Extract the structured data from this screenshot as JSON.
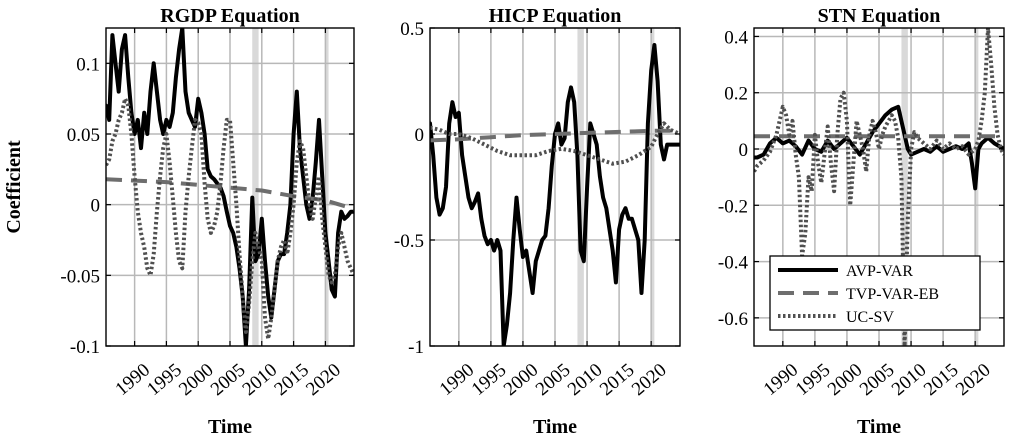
{
  "figure": {
    "ylabel": "Coefficient"
  },
  "legend_entries": [
    {
      "name": "AVP-VAR",
      "color": "#000000",
      "style": "solid"
    },
    {
      "name": "TVP-VAR-EB",
      "color": "#6e6e6e",
      "style": "dashed"
    },
    {
      "name": "UC-SV",
      "color": "#505050",
      "style": "dotted"
    }
  ],
  "chart_data": [
    {
      "type": "line",
      "title": "RGDP Equation",
      "xlabel": "Time",
      "ylabel": "Coefficient",
      "xlim": [
        1985.5,
        2024.5
      ],
      "ylim": [
        -0.1,
        0.125
      ],
      "xticks": [
        1990,
        1995,
        2000,
        2005,
        2010,
        2015,
        2020
      ],
      "yticks": [
        -0.1,
        -0.05,
        0,
        0.05,
        0.1
      ],
      "ytick_labels": [
        "-0.1",
        "-0.05",
        "0",
        "0.05",
        "0.1"
      ],
      "grid": true,
      "shaded_periods": [
        [
          2008.5,
          2009.5
        ],
        [
          2020.0,
          2020.5
        ]
      ],
      "series": [
        {
          "name": "AVP-VAR",
          "color": "#000000",
          "style": "solid",
          "x": [
            1985.5,
            1986,
            1986.5,
            1987,
            1987.5,
            1988,
            1988.5,
            1989,
            1989.5,
            1990,
            1990.5,
            1991,
            1991.5,
            1992,
            1992.5,
            1993,
            1993.5,
            1994,
            1994.5,
            1995,
            1995.5,
            1996,
            1996.5,
            1997,
            1997.5,
            1998,
            1998.5,
            1999,
            1999.5,
            2000,
            2000.5,
            2001,
            2001.5,
            2002,
            2002.5,
            2003,
            2003.5,
            2004,
            2004.5,
            2005,
            2005.5,
            2006,
            2006.5,
            2007,
            2007.5,
            2008,
            2008.5,
            2009,
            2009.5,
            2010,
            2010.5,
            2011,
            2011.5,
            2012,
            2012.5,
            2013,
            2013.5,
            2014,
            2014.5,
            2015,
            2015.5,
            2016,
            2016.5,
            2017,
            2017.5,
            2018,
            2018.5,
            2019,
            2019.5,
            2020,
            2020.5,
            2021,
            2021.5,
            2022,
            2022.5,
            2023,
            2023.5,
            2024,
            2024.5
          ],
          "y": [
            0.07,
            0.06,
            0.12,
            0.1,
            0.08,
            0.11,
            0.12,
            0.09,
            0.065,
            0.05,
            0.06,
            0.04,
            0.065,
            0.05,
            0.08,
            0.1,
            0.08,
            0.06,
            0.05,
            0.06,
            0.055,
            0.065,
            0.09,
            0.11,
            0.125,
            0.08,
            0.065,
            0.06,
            0.055,
            0.075,
            0.065,
            0.05,
            0.025,
            0.02,
            0.018,
            0.015,
            0.012,
            0.006,
            -0.005,
            -0.015,
            -0.02,
            -0.03,
            -0.045,
            -0.065,
            -0.1,
            -0.06,
            0.005,
            -0.04,
            -0.035,
            -0.01,
            -0.04,
            -0.065,
            -0.08,
            -0.06,
            -0.04,
            -0.035,
            -0.035,
            -0.02,
            0.0,
            0.05,
            0.08,
            0.04,
            0.02,
            0.0,
            -0.01,
            0.005,
            0.03,
            0.06,
            0.02,
            -0.02,
            -0.04,
            -0.06,
            -0.065,
            -0.02,
            -0.005,
            -0.01,
            -0.008,
            -0.005,
            -0.005
          ]
        },
        {
          "name": "TVP-VAR-EB",
          "color": "#6e6e6e",
          "style": "dashed",
          "x": [
            1985.5,
            1990,
            1995,
            2000,
            2005,
            2010,
            2015,
            2020,
            2024.5
          ],
          "y": [
            0.018,
            0.017,
            0.016,
            0.014,
            0.012,
            0.01,
            0.006,
            0.003,
            -0.003
          ]
        },
        {
          "name": "UC-SV",
          "color": "#505050",
          "style": "dotted",
          "x": [
            1985.5,
            1986,
            1986.5,
            1987,
            1987.5,
            1988,
            1988.5,
            1989,
            1989.5,
            1990,
            1990.5,
            1991,
            1991.5,
            1992,
            1992.5,
            1993,
            1993.5,
            1994,
            1994.5,
            1995,
            1995.5,
            1996,
            1996.5,
            1997,
            1997.5,
            1998,
            1998.5,
            1999,
            1999.5,
            2000,
            2000.5,
            2001,
            2001.5,
            2002,
            2002.5,
            2003,
            2003.5,
            2004,
            2004.5,
            2005,
            2005.5,
            2006,
            2006.5,
            2007,
            2007.5,
            2008,
            2008.5,
            2009,
            2009.5,
            2010,
            2010.5,
            2011,
            2011.5,
            2012,
            2012.5,
            2013,
            2013.5,
            2014,
            2014.5,
            2015,
            2015.5,
            2016,
            2016.5,
            2017,
            2017.5,
            2018,
            2018.5,
            2019,
            2019.5,
            2020,
            2020.5,
            2021,
            2021.5,
            2022,
            2022.5,
            2023,
            2023.5,
            2024,
            2024.5
          ],
          "y": [
            0.028,
            0.032,
            0.045,
            0.05,
            0.06,
            0.065,
            0.075,
            0.07,
            0.05,
            0.02,
            -0.005,
            -0.02,
            -0.03,
            -0.045,
            -0.05,
            -0.035,
            -0.005,
            0.02,
            0.04,
            0.05,
            0.03,
            0.005,
            -0.02,
            -0.04,
            -0.045,
            -0.005,
            0.02,
            0.04,
            0.06,
            0.058,
            0.05,
            0.015,
            -0.01,
            -0.02,
            -0.015,
            -0.005,
            0.015,
            0.04,
            0.06,
            0.06,
            0.03,
            0.0,
            -0.035,
            -0.065,
            -0.09,
            -0.07,
            -0.04,
            -0.02,
            -0.03,
            -0.04,
            -0.08,
            -0.095,
            -0.08,
            -0.06,
            -0.04,
            -0.03,
            -0.025,
            -0.035,
            -0.02,
            0.0,
            0.03,
            0.045,
            0.04,
            0.02,
            0.0,
            -0.01,
            0.005,
            0.02,
            -0.01,
            -0.03,
            -0.05,
            -0.055,
            -0.05,
            -0.03,
            -0.02,
            -0.03,
            -0.04,
            -0.045,
            -0.05
          ]
        }
      ]
    },
    {
      "type": "line",
      "title": "HICP Equation",
      "xlabel": "Time",
      "ylabel": "",
      "xlim": [
        1985.5,
        2024.5
      ],
      "ylim": [
        -1,
        0.5
      ],
      "xticks": [
        1990,
        1995,
        2000,
        2005,
        2010,
        2015,
        2020
      ],
      "yticks": [
        -1,
        -0.5,
        0,
        0.5
      ],
      "ytick_labels": [
        "-1",
        "-0.5",
        "0",
        "0.5"
      ],
      "grid": true,
      "shaded_periods": [
        [
          2008.5,
          2009.5
        ],
        [
          2020.0,
          2020.5
        ]
      ],
      "series": [
        {
          "name": "AVP-VAR",
          "color": "#000000",
          "style": "solid",
          "x": [
            1985.5,
            1986,
            1986.5,
            1987,
            1987.5,
            1988,
            1988.5,
            1989,
            1989.5,
            1990,
            1990.5,
            1991,
            1991.5,
            1992,
            1992.5,
            1993,
            1993.5,
            1994,
            1994.5,
            1995,
            1995.5,
            1996,
            1996.5,
            1997,
            1997.5,
            1998,
            1998.5,
            1999,
            1999.5,
            2000,
            2000.5,
            2001,
            2001.5,
            2002,
            2002.5,
            2003,
            2003.5,
            2004,
            2004.5,
            2005,
            2005.5,
            2006,
            2006.5,
            2007,
            2007.5,
            2008,
            2008.5,
            2009,
            2009.5,
            2010,
            2010.5,
            2011,
            2011.5,
            2012,
            2012.5,
            2013,
            2013.5,
            2014,
            2014.5,
            2015,
            2015.5,
            2016,
            2016.5,
            2017,
            2017.5,
            2018,
            2018.5,
            2019,
            2019.5,
            2020,
            2020.5,
            2021,
            2021.5,
            2022,
            2022.5,
            2023,
            2023.5,
            2024,
            2024.5
          ],
          "y": [
            0.05,
            -0.1,
            -0.3,
            -0.38,
            -0.35,
            -0.25,
            0.05,
            0.15,
            0.08,
            0.1,
            -0.1,
            -0.2,
            -0.3,
            -0.35,
            -0.32,
            -0.28,
            -0.4,
            -0.48,
            -0.52,
            -0.5,
            -0.55,
            -0.5,
            -0.55,
            -1.0,
            -0.9,
            -0.75,
            -0.5,
            -0.3,
            -0.45,
            -0.58,
            -0.55,
            -0.65,
            -0.75,
            -0.6,
            -0.55,
            -0.5,
            -0.48,
            -0.35,
            -0.15,
            0.0,
            0.05,
            -0.05,
            -0.02,
            0.15,
            0.22,
            0.15,
            -0.1,
            -0.55,
            -0.6,
            -0.25,
            0.05,
            0.0,
            -0.05,
            -0.2,
            -0.3,
            -0.35,
            -0.45,
            -0.55,
            -0.7,
            -0.45,
            -0.38,
            -0.35,
            -0.4,
            -0.4,
            -0.45,
            -0.5,
            -0.75,
            -0.5,
            0.05,
            0.3,
            0.42,
            0.25,
            -0.05,
            -0.12,
            -0.05,
            -0.05,
            -0.05,
            -0.05,
            -0.05
          ]
        },
        {
          "name": "TVP-VAR-EB",
          "color": "#6e6e6e",
          "style": "dashed",
          "x": [
            1985.5,
            1990,
            1995,
            2000,
            2005,
            2010,
            2015,
            2020,
            2024.5
          ],
          "y": [
            -0.03,
            -0.025,
            -0.015,
            -0.005,
            0.0,
            0.005,
            0.01,
            0.015,
            0.015
          ]
        },
        {
          "name": "UC-SV",
          "color": "#505050",
          "style": "dotted",
          "x": [
            1985.5,
            1987,
            1988.5,
            1990,
            1992,
            1994,
            1996,
            1998,
            2000,
            2002,
            2004,
            2006,
            2008,
            2010,
            2012,
            2014,
            2016,
            2018,
            2020,
            2021,
            2022,
            2023,
            2024.5
          ],
          "y": [
            0.03,
            0.02,
            0.0,
            0.0,
            -0.02,
            -0.05,
            -0.08,
            -0.1,
            -0.1,
            -0.1,
            -0.08,
            -0.07,
            -0.08,
            -0.1,
            -0.12,
            -0.14,
            -0.13,
            -0.1,
            -0.06,
            0.0,
            0.05,
            0.02,
            0.0
          ]
        }
      ]
    },
    {
      "type": "line",
      "title": "STN Equation",
      "xlabel": "Time",
      "ylabel": "",
      "xlim": [
        1985.5,
        2024.5
      ],
      "ylim": [
        -0.7,
        0.43
      ],
      "xticks": [
        1990,
        1995,
        2000,
        2005,
        2010,
        2015,
        2020
      ],
      "yticks": [
        -0.6,
        -0.4,
        -0.2,
        0,
        0.2,
        0.4
      ],
      "ytick_labels": [
        "-0.6",
        "-0.4",
        "-0.2",
        "0",
        "0.2",
        "0.4"
      ],
      "grid": true,
      "shaded_periods": [
        [
          2008.5,
          2009.5
        ],
        [
          2020.0,
          2020.5
        ]
      ],
      "legend_position": "lower-right",
      "series": [
        {
          "name": "AVP-VAR",
          "color": "#000000",
          "style": "solid",
          "x": [
            1985.5,
            1986,
            1987,
            1988,
            1989,
            1990,
            1991,
            1992,
            1993,
            1994,
            1995,
            1996,
            1997,
            1998,
            1999,
            2000,
            2001,
            2002,
            2003,
            2004,
            2005,
            2006,
            2007,
            2008,
            2008.5,
            2009,
            2009.5,
            2010,
            2011,
            2012,
            2013,
            2014,
            2015,
            2016,
            2017,
            2018,
            2019,
            2019.5,
            2020,
            2020.5,
            2021,
            2022,
            2023,
            2024.5
          ],
          "y": [
            -0.03,
            -0.03,
            -0.02,
            0.02,
            0.04,
            0.02,
            0.03,
            0.01,
            -0.02,
            0.03,
            0.0,
            -0.01,
            0.03,
            0.0,
            0.02,
            0.04,
            0.01,
            -0.02,
            0.02,
            0.06,
            0.09,
            0.12,
            0.14,
            0.15,
            0.1,
            0.05,
            0.0,
            -0.02,
            -0.01,
            0.0,
            -0.01,
            0.01,
            -0.01,
            0.0,
            0.01,
            0.0,
            0.02,
            -0.05,
            -0.14,
            0.0,
            0.02,
            0.04,
            0.02,
            0.0
          ]
        },
        {
          "name": "TVP-VAR-EB",
          "color": "#6e6e6e",
          "style": "dashed",
          "x": [
            1985.5,
            1995,
            2005,
            2015,
            2024.5
          ],
          "y": [
            0.045,
            0.045,
            0.045,
            0.045,
            0.045
          ]
        },
        {
          "name": "UC-SV",
          "color": "#505050",
          "style": "dotted",
          "x": [
            1985.5,
            1986,
            1987,
            1988,
            1989,
            1990,
            1990.5,
            1991,
            1991.5,
            1992,
            1992.5,
            1993,
            1993.5,
            1994,
            1994.5,
            1995,
            1995.5,
            1996,
            1996.5,
            1997,
            1997.5,
            1998,
            1998.5,
            1999,
            1999.5,
            2000,
            2000.5,
            2001,
            2001.5,
            2002,
            2002.5,
            2003,
            2003.5,
            2004,
            2004.5,
            2005,
            2005.5,
            2006,
            2006.5,
            2007,
            2007.5,
            2008,
            2008.5,
            2009,
            2009.5,
            2010,
            2010.5,
            2011,
            2012,
            2013,
            2014,
            2015,
            2016,
            2017,
            2018,
            2019,
            2020,
            2020.5,
            2021,
            2021.5,
            2022,
            2022.5,
            2023,
            2023.5,
            2024,
            2024.5
          ],
          "y": [
            -0.08,
            -0.06,
            -0.04,
            -0.01,
            0.05,
            0.15,
            0.12,
            0.05,
            0.1,
            -0.02,
            -0.1,
            -0.38,
            -0.3,
            -0.1,
            -0.15,
            0.05,
            -0.05,
            -0.12,
            -0.02,
            0.08,
            -0.05,
            -0.15,
            0.05,
            0.18,
            0.2,
            0.1,
            -0.2,
            -0.05,
            0.1,
            0.05,
            0.0,
            -0.08,
            0.05,
            0.1,
            0.06,
            0.0,
            0.05,
            0.08,
            0.1,
            0.12,
            0.1,
            0.04,
            -0.1,
            -0.7,
            -0.25,
            0.0,
            0.06,
            0.04,
            0.02,
            0.0,
            0.03,
            0.0,
            0.02,
            0.0,
            0.01,
            -0.02,
            0.0,
            0.03,
            0.1,
            0.2,
            0.43,
            0.3,
            0.15,
            0.05,
            0.0,
            -0.02
          ]
        }
      ]
    }
  ]
}
